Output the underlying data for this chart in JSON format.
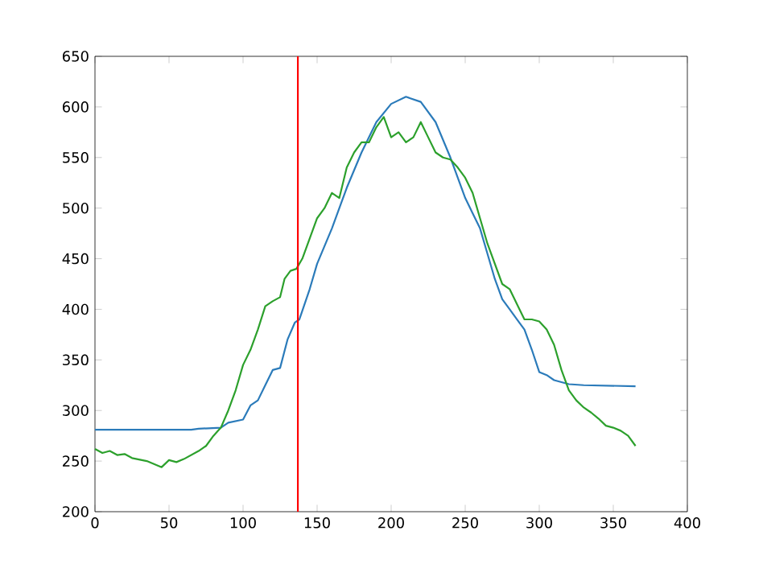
{
  "chart_data": {
    "type": "line",
    "xlim": [
      0,
      400
    ],
    "ylim": [
      200,
      650
    ],
    "xticks": [
      0,
      50,
      100,
      150,
      200,
      250,
      300,
      350,
      400
    ],
    "yticks": [
      200,
      250,
      300,
      350,
      400,
      450,
      500,
      550,
      600,
      650
    ],
    "marker": "none",
    "line_style": "solid",
    "series": [
      {
        "color": "#2b7bba",
        "x": [
          0,
          65,
          70,
          85,
          90,
          100,
          105,
          110,
          115,
          120,
          125,
          130,
          135,
          138,
          145,
          150,
          160,
          170,
          180,
          190,
          200,
          210,
          220,
          230,
          240,
          250,
          255,
          260,
          265,
          270,
          275,
          280,
          285,
          290,
          295,
          300,
          305,
          310,
          320,
          330,
          365
        ],
        "values": [
          281,
          281,
          282,
          283,
          288,
          291,
          305,
          310,
          325,
          340,
          342,
          370,
          387,
          390,
          420,
          445,
          480,
          520,
          555,
          585,
          603,
          610,
          605,
          585,
          550,
          510,
          495,
          480,
          455,
          430,
          410,
          400,
          390,
          380,
          360,
          338,
          335,
          330,
          326,
          325,
          324
        ]
      },
      {
        "color": "#2ca02c",
        "x": [
          0,
          5,
          10,
          15,
          20,
          25,
          35,
          45,
          50,
          55,
          60,
          65,
          70,
          75,
          80,
          85,
          90,
          95,
          100,
          105,
          110,
          115,
          120,
          125,
          128,
          132,
          136,
          140,
          145,
          150,
          155,
          160,
          165,
          170,
          175,
          180,
          185,
          190,
          195,
          200,
          205,
          210,
          215,
          220,
          225,
          230,
          235,
          240,
          245,
          250,
          255,
          260,
          265,
          270,
          275,
          280,
          285,
          290,
          295,
          300,
          305,
          310,
          315,
          320,
          325,
          330,
          335,
          340,
          345,
          350,
          355,
          360,
          365
        ],
        "values": [
          262,
          258,
          260,
          256,
          257,
          253,
          250,
          244,
          251,
          249,
          252,
          256,
          260,
          265,
          275,
          283,
          300,
          320,
          345,
          360,
          380,
          403,
          408,
          412,
          430,
          438,
          440,
          450,
          470,
          490,
          500,
          515,
          510,
          540,
          555,
          565,
          565,
          580,
          590,
          570,
          575,
          565,
          570,
          585,
          570,
          555,
          550,
          548,
          540,
          530,
          515,
          490,
          465,
          445,
          425,
          420,
          405,
          390,
          390,
          388,
          380,
          365,
          340,
          320,
          310,
          303,
          298,
          292,
          285,
          283,
          280,
          275,
          265
        ]
      }
    ],
    "ref_lines": [
      {
        "axis": "x",
        "value": 137,
        "color": "#ff0000"
      }
    ]
  }
}
